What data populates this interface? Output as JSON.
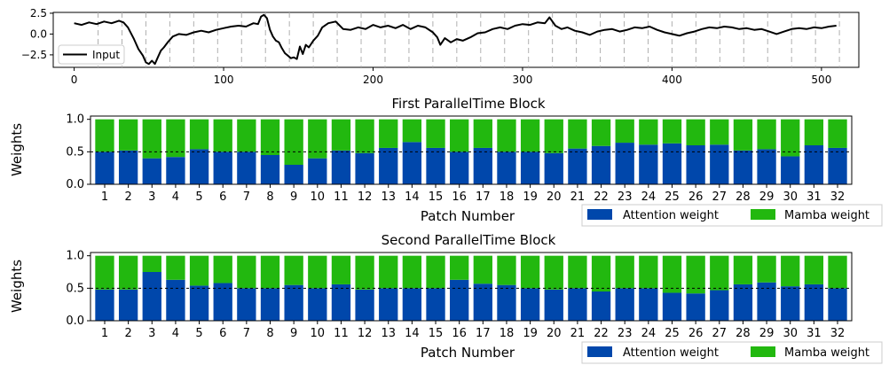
{
  "colors": {
    "attention": "#0047ab",
    "mamba": "#22b80f",
    "line": "#000000",
    "grid": "#b0b0b0"
  },
  "chart_data": [
    {
      "type": "line",
      "title": "",
      "xlabel": "",
      "ylabel": "",
      "xlim": [
        -14,
        525
      ],
      "ylim": [
        -4.0,
        2.6
      ],
      "xticks": [
        0,
        100,
        200,
        300,
        400,
        500
      ],
      "yticks": [
        -2.5,
        0.0,
        2.5
      ],
      "ytick_labels": [
        "−2.5",
        "0.0",
        "2.5"
      ],
      "patch_boundaries": [
        16,
        32,
        48,
        64,
        80,
        96,
        112,
        128,
        144,
        160,
        176,
        192,
        208,
        224,
        240,
        256,
        272,
        288,
        304,
        320,
        336,
        352,
        368,
        384,
        400,
        416,
        432,
        448,
        464,
        480,
        496,
        512
      ],
      "legend": {
        "label": "Input",
        "position": "lower-left"
      },
      "series": [
        {
          "name": "Input",
          "x": [
            0,
            5,
            10,
            15,
            20,
            25,
            30,
            33,
            36,
            40,
            43,
            46,
            48,
            50,
            52,
            54,
            56,
            58,
            60,
            63,
            66,
            70,
            75,
            80,
            85,
            90,
            95,
            100,
            105,
            110,
            115,
            120,
            123,
            125,
            127,
            129,
            131,
            133,
            135,
            137,
            139,
            141,
            143,
            145,
            147,
            149,
            151,
            153,
            155,
            157,
            160,
            163,
            166,
            170,
            175,
            180,
            185,
            190,
            195,
            200,
            205,
            210,
            215,
            220,
            225,
            230,
            235,
            240,
            243,
            245,
            248,
            252,
            256,
            260,
            265,
            270,
            275,
            280,
            285,
            290,
            295,
            300,
            305,
            310,
            315,
            318,
            322,
            326,
            330,
            335,
            340,
            345,
            350,
            355,
            360,
            365,
            370,
            375,
            380,
            385,
            390,
            395,
            400,
            405,
            410,
            415,
            420,
            425,
            430,
            435,
            440,
            445,
            450,
            455,
            460,
            465,
            470,
            475,
            480,
            485,
            490,
            495,
            500,
            505,
            510
          ],
          "y": [
            1.3,
            1.1,
            1.4,
            1.2,
            1.5,
            1.3,
            1.6,
            1.4,
            0.8,
            -0.6,
            -1.8,
            -2.6,
            -3.4,
            -3.6,
            -3.2,
            -3.6,
            -2.8,
            -2.0,
            -1.6,
            -0.9,
            -0.3,
            0.0,
            -0.1,
            0.2,
            0.4,
            0.2,
            0.5,
            0.7,
            0.9,
            1.0,
            0.9,
            1.3,
            1.2,
            2.1,
            2.3,
            1.9,
            0.5,
            -0.3,
            -0.8,
            -1.0,
            -1.7,
            -2.3,
            -2.6,
            -2.9,
            -2.8,
            -3.0,
            -1.5,
            -2.4,
            -1.3,
            -1.6,
            -0.8,
            -0.2,
            0.8,
            1.3,
            1.5,
            0.6,
            0.5,
            0.8,
            0.6,
            1.1,
            0.8,
            1.0,
            0.7,
            1.1,
            0.6,
            1.0,
            0.8,
            0.2,
            -0.4,
            -1.3,
            -0.5,
            -1.0,
            -0.6,
            -0.8,
            -0.4,
            0.1,
            0.2,
            0.6,
            0.8,
            0.6,
            1.0,
            1.2,
            1.1,
            1.4,
            1.3,
            2.0,
            1.0,
            0.6,
            0.8,
            0.4,
            0.2,
            -0.1,
            0.3,
            0.5,
            0.6,
            0.3,
            0.5,
            0.8,
            0.7,
            0.9,
            0.5,
            0.2,
            0.0,
            -0.2,
            0.1,
            0.3,
            0.6,
            0.8,
            0.7,
            0.9,
            0.8,
            0.6,
            0.7,
            0.5,
            0.6,
            0.3,
            0.0,
            0.3,
            0.6,
            0.7,
            0.6,
            0.8,
            0.7,
            0.9,
            1.0
          ]
        }
      ]
    },
    {
      "type": "bar",
      "stacked": true,
      "title": "First ParallelTime Block",
      "xlabel": "Patch Number",
      "ylabel": "Weights",
      "ylim": [
        0,
        1.05
      ],
      "yticks": [
        0.0,
        0.5,
        1.0
      ],
      "reference_line": 0.5,
      "categories": [
        "1",
        "2",
        "3",
        "4",
        "5",
        "6",
        "7",
        "8",
        "9",
        "10",
        "11",
        "12",
        "13",
        "14",
        "15",
        "16",
        "17",
        "18",
        "19",
        "20",
        "21",
        "22",
        "23",
        "24",
        "25",
        "26",
        "27",
        "28",
        "29",
        "30",
        "31",
        "32"
      ],
      "series": [
        {
          "name": "Attention weight",
          "values": [
            0.5,
            0.52,
            0.4,
            0.42,
            0.54,
            0.5,
            0.5,
            0.45,
            0.3,
            0.4,
            0.52,
            0.48,
            0.56,
            0.65,
            0.56,
            0.5,
            0.56,
            0.5,
            0.5,
            0.48,
            0.55,
            0.59,
            0.64,
            0.61,
            0.63,
            0.6,
            0.61,
            0.52,
            0.54,
            0.43,
            0.6,
            0.56
          ]
        },
        {
          "name": "Mamba weight",
          "values": [
            0.5,
            0.48,
            0.6,
            0.58,
            0.46,
            0.5,
            0.5,
            0.55,
            0.7,
            0.6,
            0.48,
            0.52,
            0.44,
            0.35,
            0.44,
            0.5,
            0.44,
            0.5,
            0.5,
            0.52,
            0.45,
            0.41,
            0.36,
            0.39,
            0.37,
            0.4,
            0.39,
            0.48,
            0.46,
            0.57,
            0.4,
            0.44
          ]
        }
      ],
      "legend": {
        "labels": [
          "Attention weight",
          "Mamba weight"
        ],
        "position": "bottom-right"
      }
    },
    {
      "type": "bar",
      "stacked": true,
      "title": "Second ParallelTime Block",
      "xlabel": "Patch Number",
      "ylabel": "Weights",
      "ylim": [
        0,
        1.05
      ],
      "yticks": [
        0.0,
        0.5,
        1.0
      ],
      "reference_line": 0.5,
      "categories": [
        "1",
        "2",
        "3",
        "4",
        "5",
        "6",
        "7",
        "8",
        "9",
        "10",
        "11",
        "12",
        "13",
        "14",
        "15",
        "16",
        "17",
        "18",
        "19",
        "20",
        "21",
        "22",
        "23",
        "24",
        "25",
        "26",
        "27",
        "28",
        "29",
        "30",
        "31",
        "32"
      ],
      "series": [
        {
          "name": "Attention weight",
          "values": [
            0.48,
            0.48,
            0.75,
            0.63,
            0.54,
            0.58,
            0.5,
            0.5,
            0.55,
            0.5,
            0.56,
            0.48,
            0.5,
            0.5,
            0.5,
            0.63,
            0.57,
            0.55,
            0.5,
            0.48,
            0.5,
            0.45,
            0.5,
            0.5,
            0.43,
            0.42,
            0.47,
            0.56,
            0.59,
            0.53,
            0.56,
            0.5
          ]
        },
        {
          "name": "Mamba weight",
          "values": [
            0.52,
            0.52,
            0.25,
            0.37,
            0.46,
            0.42,
            0.5,
            0.5,
            0.45,
            0.5,
            0.44,
            0.52,
            0.5,
            0.5,
            0.5,
            0.37,
            0.43,
            0.45,
            0.5,
            0.52,
            0.5,
            0.55,
            0.5,
            0.5,
            0.57,
            0.58,
            0.53,
            0.44,
            0.41,
            0.47,
            0.44,
            0.5
          ]
        }
      ],
      "legend": {
        "labels": [
          "Attention weight",
          "Mamba weight"
        ],
        "position": "bottom-right"
      }
    }
  ]
}
